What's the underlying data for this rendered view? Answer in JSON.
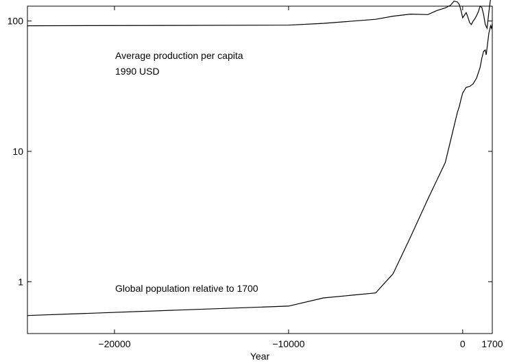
{
  "chart_data": {
    "type": "line",
    "title": "",
    "xlabel": "Year",
    "ylabel": "",
    "xlim": [
      -25000,
      1700
    ],
    "ylim": [
      0.4,
      130
    ],
    "yscale": "log",
    "grid": false,
    "x_ticks": [
      {
        "value": -20000,
        "label": "−20000"
      },
      {
        "value": -10000,
        "label": "−10000"
      },
      {
        "value": 0,
        "label": "0"
      },
      {
        "value": 1700,
        "label": "1700"
      }
    ],
    "y_ticks": [
      {
        "value": 1,
        "label": "1"
      },
      {
        "value": 10,
        "label": "10"
      },
      {
        "value": 100,
        "label": "100"
      }
    ],
    "annotations": [
      {
        "lines": [
          "Average production per capita",
          "1990 USD"
        ]
      },
      {
        "lines": [
          "Global population relative to 1700"
        ]
      }
    ],
    "series": [
      {
        "color": "#000000",
        "x": [
          -25000,
          -10000,
          -8000,
          -5000,
          -4000,
          -3000,
          -2000,
          -1500,
          -1000,
          -700,
          -500,
          -300,
          -200,
          -100,
          0,
          100,
          200,
          300,
          400,
          500,
          600,
          700,
          800,
          900,
          1000,
          1100,
          1200,
          1300,
          1400,
          1500,
          1600,
          1650,
          1700
        ],
        "y": [
          92,
          93,
          96,
          103,
          109,
          113,
          112,
          120,
          126,
          132,
          142,
          140,
          134,
          121,
          106,
          111,
          116,
          107,
          97,
          94,
          100,
          104,
          110,
          118,
          130,
          127,
          112,
          94,
          88,
          116,
          148,
          153,
          160
        ]
      },
      {
        "color": "#000000",
        "x": [
          -25000,
          -10000,
          -8000,
          -5000,
          -4000,
          -3000,
          -2000,
          -1000,
          -500,
          -300,
          -200,
          -100,
          0,
          200,
          400,
          600,
          800,
          1000,
          1100,
          1200,
          1300,
          1350,
          1400,
          1500,
          1600,
          1650,
          1700
        ],
        "y": [
          0.55,
          0.65,
          0.75,
          0.82,
          1.15,
          2.2,
          4.3,
          8.2,
          15.5,
          20,
          22,
          25,
          28,
          31,
          31.5,
          33,
          36.5,
          44,
          52,
          58.5,
          60,
          55,
          62,
          80,
          92,
          88,
          95
        ]
      }
    ]
  }
}
